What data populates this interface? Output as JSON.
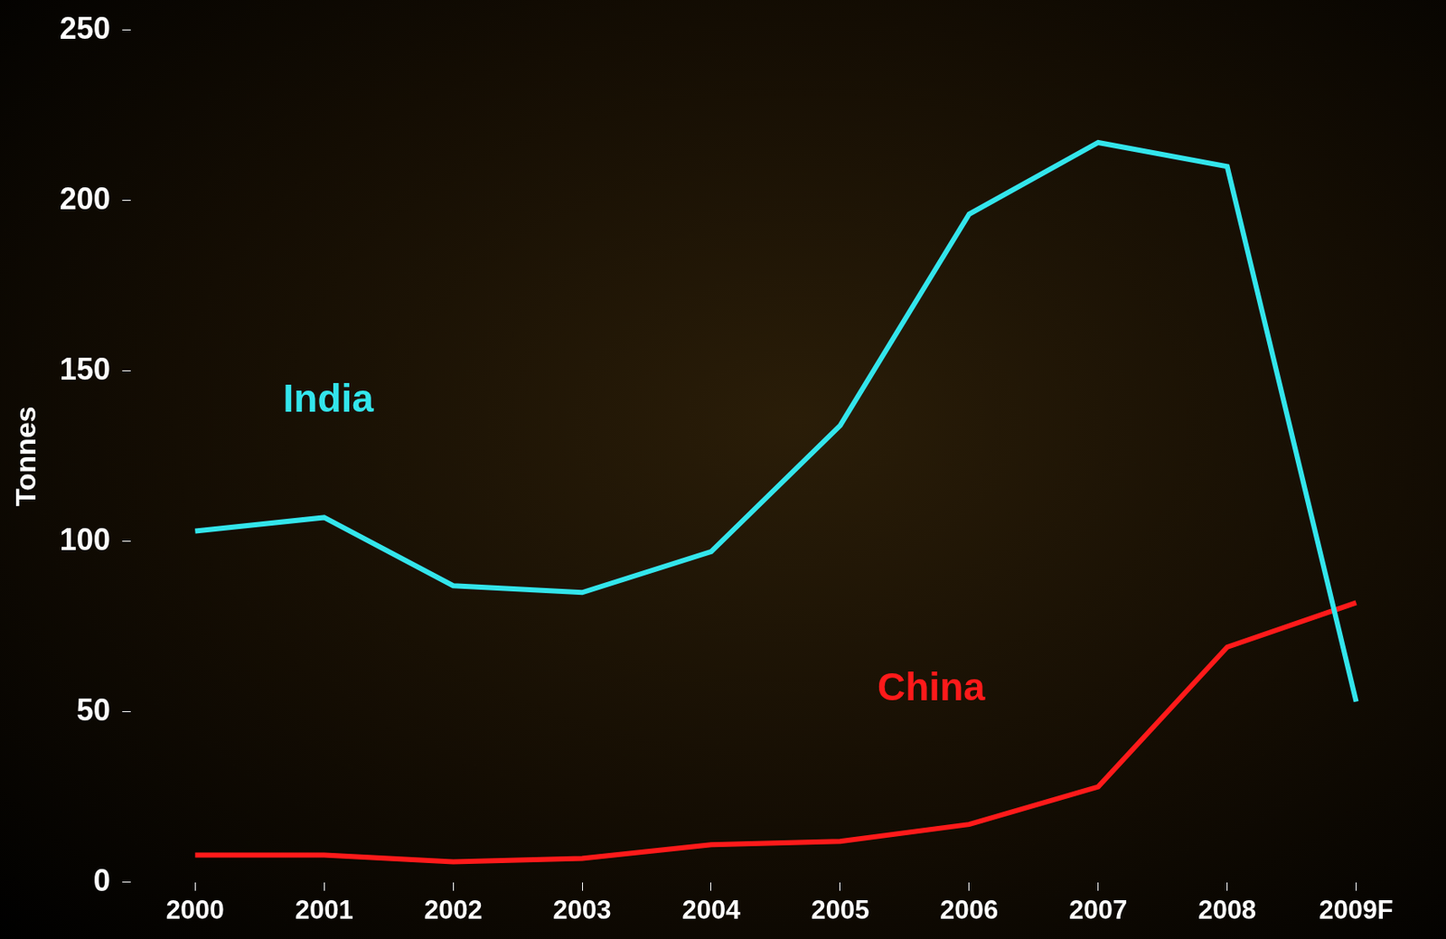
{
  "chart_data": {
    "type": "line",
    "categories": [
      "2000",
      "2001",
      "2002",
      "2003",
      "2004",
      "2005",
      "2006",
      "2007",
      "2008",
      "2009F"
    ],
    "series": [
      {
        "name": "India",
        "color": "#33e5ec",
        "values": [
          103,
          107,
          87,
          85,
          97,
          134,
          196,
          217,
          210,
          53
        ]
      },
      {
        "name": "China",
        "color": "#ff1a1a",
        "values": [
          8,
          8,
          6,
          7,
          11,
          12,
          17,
          28,
          69,
          82
        ]
      }
    ],
    "y_label": "Tonnes",
    "ylim": [
      0,
      250
    ],
    "yticks": [
      0,
      50,
      100,
      150,
      200,
      250
    ],
    "grid": false
  }
}
